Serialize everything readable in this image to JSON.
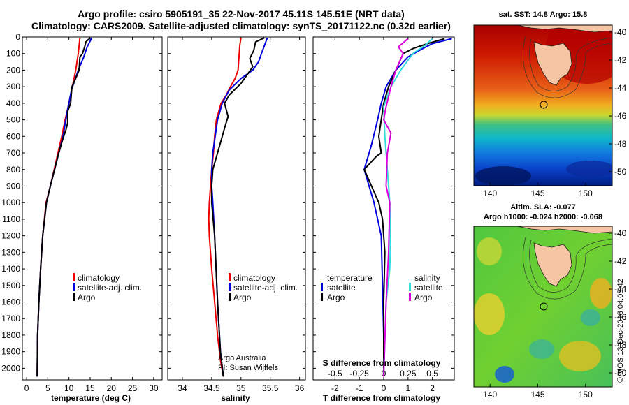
{
  "title": {
    "line1": "Argo profile: csiro 5905191_35 22-Nov-2017 45.11S 145.51E (NRT data)",
    "line2": "Climatology: CARS2009. Satellite-adjusted climatology: synTS_20171122.nc (0.32d earlier)"
  },
  "colors": {
    "climatology": "#ee0000",
    "satellite": "#0000dd",
    "argo": "#000000",
    "sat_salinity": "#33dddd",
    "argo_salinity": "#dd00dd"
  },
  "credit": {
    "line1": "Argo Australia",
    "line2": "PI: Susan Wijffels"
  },
  "stamp": "©IMOS 13-Dec-2018 04:08:42",
  "chart_data": [
    {
      "type": "line",
      "panel": "temperature",
      "xlabel": "temperature (deg C)",
      "xlim": [
        -1,
        32
      ],
      "xticks": [
        0,
        5,
        10,
        15,
        20,
        25,
        30
      ],
      "ylim": [
        2070,
        0
      ],
      "yticks": [
        0,
        100,
        200,
        300,
        400,
        500,
        600,
        700,
        800,
        900,
        1000,
        1100,
        1200,
        1300,
        1400,
        1500,
        1600,
        1700,
        1800,
        1900,
        2000
      ],
      "ytick_labels": [
        "0",
        "100",
        "200",
        "300",
        "400",
        "500",
        "600",
        "700",
        "800",
        "900",
        "1000",
        "1100",
        "1200",
        "1300",
        "1400",
        "1500",
        "1600",
        "1700",
        "1800",
        "1900",
        "2000"
      ],
      "series": [
        {
          "name": "climatology",
          "color": "#ee0000",
          "x": [
            12.6,
            12.2,
            11.6,
            10.8,
            10.0,
            9.1,
            8.3,
            7.4,
            6.5,
            5.6,
            4.6,
            3.8,
            3.3,
            2.9,
            2.6,
            2.5
          ],
          "y": [
            5,
            100,
            200,
            300,
            400,
            500,
            600,
            700,
            800,
            900,
            1000,
            1200,
            1400,
            1600,
            1800,
            2050
          ]
        },
        {
          "name": "satellite-adj. clim.",
          "color": "#0000dd",
          "x": [
            15.4,
            14.3,
            13.5,
            12.2,
            10.6,
            9.6,
            8.6,
            7.6,
            6.6,
            5.6,
            4.7,
            3.8,
            3.3,
            2.9,
            2.6,
            2.5
          ],
          "y": [
            5,
            60,
            120,
            200,
            320,
            450,
            600,
            700,
            800,
            900,
            1000,
            1200,
            1400,
            1600,
            1800,
            2050
          ]
        },
        {
          "name": "Argo",
          "color": "#000000",
          "x": [
            15.0,
            14.0,
            13.7,
            13.2,
            12.6,
            12.4,
            11.6,
            10.7,
            10.4,
            9.7,
            9.7,
            9.3,
            8.5,
            7.6,
            6.6,
            5.6,
            4.7,
            3.8,
            3.3,
            2.9,
            2.6,
            2.5
          ],
          "y": [
            5,
            30,
            60,
            100,
            120,
            200,
            250,
            300,
            400,
            450,
            520,
            560,
            620,
            700,
            800,
            900,
            1000,
            1200,
            1400,
            1600,
            1800,
            2050
          ]
        }
      ]
    },
    {
      "type": "line",
      "panel": "salinity",
      "xlabel": "salinity",
      "xlim": [
        33.75,
        36.1
      ],
      "xticks": [
        34,
        34.5,
        35,
        35.5,
        36
      ],
      "xtick_labels": [
        "34",
        "34.5",
        "35",
        "35.5",
        "36"
      ],
      "ylim": [
        2070,
        0
      ],
      "series": [
        {
          "name": "climatology",
          "color": "#ee0000",
          "x": [
            35.0,
            34.98,
            34.97,
            34.95,
            34.9,
            34.82,
            34.75,
            34.66,
            34.58,
            34.55,
            34.53,
            34.5,
            34.48,
            34.46,
            34.45,
            34.46,
            34.5,
            34.55,
            34.6,
            34.65,
            34.7
          ],
          "y": [
            5,
            50,
            100,
            200,
            250,
            300,
            350,
            400,
            500,
            600,
            700,
            800,
            900,
            1000,
            1100,
            1200,
            1400,
            1600,
            1800,
            1950,
            2050
          ]
        },
        {
          "name": "satellite-adj. clim.",
          "color": "#0000dd",
          "x": [
            35.45,
            35.35,
            35.3,
            35.2,
            35.0,
            34.8,
            34.68,
            34.6,
            34.56,
            34.52,
            34.5,
            34.5,
            34.52,
            34.55,
            34.6,
            34.65,
            34.7
          ],
          "y": [
            5,
            100,
            150,
            200,
            250,
            320,
            400,
            500,
            600,
            700,
            800,
            900,
            1000,
            1200,
            1600,
            1900,
            2050
          ]
        },
        {
          "name": "Argo",
          "color": "#000000",
          "x": [
            35.4,
            35.25,
            35.22,
            35.15,
            35.2,
            35.0,
            34.8,
            34.72,
            34.78,
            34.72,
            34.68,
            34.6,
            34.52,
            34.5,
            34.5,
            34.55,
            34.6,
            34.65,
            34.7
          ],
          "y": [
            5,
            30,
            80,
            130,
            180,
            280,
            350,
            400,
            480,
            550,
            600,
            700,
            800,
            900,
            1000,
            1200,
            1600,
            1900,
            2050
          ]
        }
      ]
    },
    {
      "type": "line",
      "panel": "difference",
      "xlabel": "T difference from climatology",
      "xlim": [
        -2.9,
        2.9
      ],
      "xticks": [
        -2,
        -1,
        0,
        1,
        2
      ],
      "top_axis_label": "S difference from climatology",
      "top_xticks": [
        -0.5,
        -0.25,
        0,
        0.25,
        0.5
      ],
      "top_xtick_labels": [
        "-0.5",
        "-0.25",
        "0",
        "0.25",
        "0.5"
      ],
      "ylim": [
        2070,
        0
      ],
      "series": [
        {
          "name": "satellite",
          "group": "temperature",
          "color": "#0000dd",
          "x": [
            2.8,
            2.0,
            1.6,
            1.0,
            0.5,
            0.1,
            -0.1,
            -0.25,
            -0.5,
            -0.8,
            -0.6,
            -0.4,
            -0.25,
            -0.1,
            -0.05,
            0.0,
            0.0
          ],
          "y": [
            10,
            40,
            70,
            120,
            200,
            300,
            400,
            500,
            650,
            800,
            900,
            1000,
            1100,
            1200,
            1500,
            1800,
            2050
          ]
        },
        {
          "name": "Argo",
          "group": "temperature",
          "color": "#000000",
          "x": [
            2.5,
            1.8,
            1.2,
            0.8,
            0.2,
            0.0,
            -0.1,
            -0.2,
            -0.1,
            -0.3,
            -0.8,
            -0.5,
            -0.2,
            -0.05,
            0.05,
            0.0,
            0.0
          ],
          "y": [
            10,
            40,
            70,
            100,
            300,
            400,
            500,
            600,
            700,
            720,
            800,
            900,
            1000,
            1100,
            1300,
            1600,
            2050
          ]
        },
        {
          "name": "satellite",
          "group": "salinity",
          "color": "#33dddd",
          "x": [
            2.0,
            1.7,
            1.2,
            0.7,
            0.3,
            0.0,
            0.05,
            0.15,
            0.2,
            0.25,
            0.28,
            0.25,
            0.1,
            0.0
          ],
          "y": [
            10,
            50,
            100,
            200,
            300,
            420,
            600,
            800,
            900,
            1000,
            1200,
            1400,
            1600,
            2050
          ]
        },
        {
          "name": "Argo",
          "group": "salinity",
          "color": "#dd00dd",
          "x": [
            1.0,
            0.6,
            0.8,
            0.5,
            0.3,
            0.1,
            0.0,
            0.3,
            0.15,
            0.1,
            0.25,
            0.2,
            0.1,
            0.0
          ],
          "y": [
            10,
            60,
            100,
            200,
            300,
            420,
            500,
            580,
            700,
            900,
            1000,
            1300,
            1600,
            2050
          ]
        }
      ]
    },
    {
      "type": "heatmap",
      "panel": "sst-map",
      "title": "sat. SST: 14.8 Argo: 15.8",
      "xlim": [
        138.3,
        152.8
      ],
      "ylim": [
        -51,
        -39.5
      ],
      "xticks": [
        140,
        145,
        150
      ],
      "yticks": [
        -40,
        -42,
        -44,
        -46,
        -48,
        -50
      ],
      "argo_position": {
        "lon": 145.51,
        "lat": -45.11
      }
    },
    {
      "type": "heatmap",
      "panel": "sla-map",
      "title_line1": "Altim. SLA: -0.077",
      "title_line2": "Argo h1000: -0.024 h2000: -0.068",
      "xlim": [
        138.3,
        152.8
      ],
      "ylim": [
        -51,
        -39.5
      ],
      "xticks": [
        140,
        145,
        150
      ],
      "yticks": [
        -40,
        -42,
        -44,
        -46,
        -48,
        -50
      ],
      "argo_position": {
        "lon": 145.51,
        "lat": -45.11
      }
    }
  ],
  "legends": {
    "temperature": [
      "climatology",
      "satellite-adj. clim.",
      "Argo"
    ],
    "salinity": [
      "climatology",
      "satellite-adj. clim.",
      "Argo"
    ],
    "difference": {
      "left_header": "temperature",
      "right_header": "salinity",
      "left_items": [
        "satellite",
        "Argo"
      ],
      "right_items": [
        "satellite",
        "Argo"
      ]
    }
  }
}
